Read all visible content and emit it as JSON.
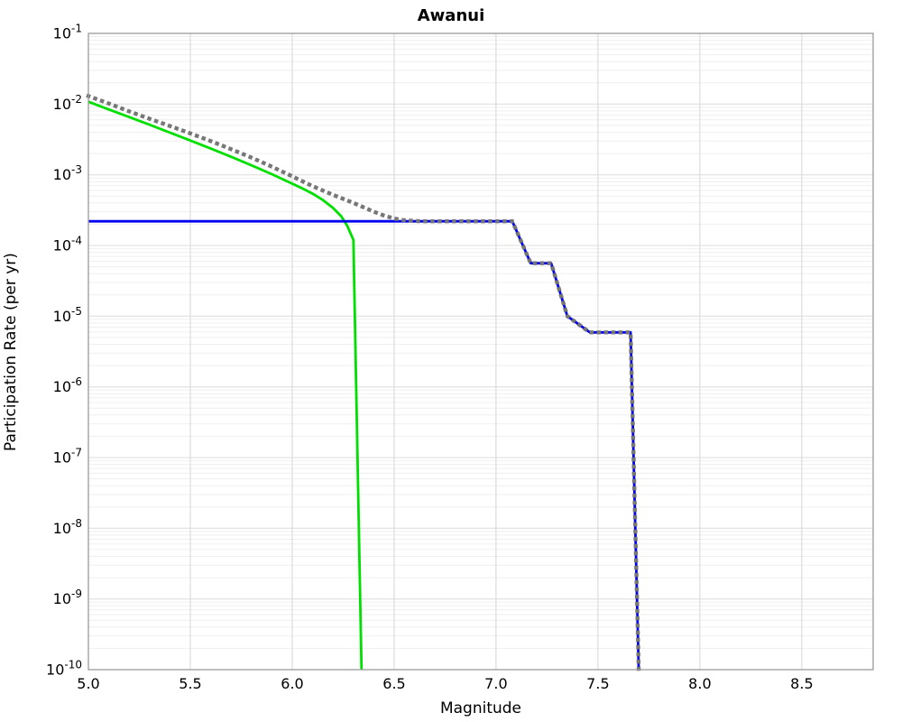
{
  "chart_data": {
    "type": "line",
    "title": "Awanui",
    "xlabel": "Magnitude",
    "ylabel": "Participation Rate (per yr)",
    "xlim": [
      5.0,
      8.85
    ],
    "ylim": [
      1e-10,
      0.1
    ],
    "y_scale": "log",
    "grid": true,
    "legend": "none",
    "x_ticks": [
      5.0,
      5.5,
      6.0,
      6.5,
      7.0,
      7.5,
      8.0,
      8.5
    ],
    "x_tick_labels": [
      "5.0",
      "5.5",
      "6.0",
      "6.5",
      "7.0",
      "7.5",
      "8.0",
      "8.5"
    ],
    "y_tick_exponents": [
      -1,
      -2,
      -3,
      -4,
      -5,
      -6,
      -7,
      -8,
      -9,
      -10
    ],
    "colors": {
      "frame": "#9a9a9a",
      "grid_vertical": "#d6d6d6",
      "grid_major": "#dcdcdc",
      "grid_minor": "#efefef",
      "gray_series": "#777777",
      "green_series": "#00e000",
      "blue_series": "#0000ee"
    },
    "series": [
      {
        "id": "green-solid",
        "color_key": "green_series",
        "style": "solid",
        "width": 2.8,
        "points": [
          [
            5.0,
            0.0108
          ],
          [
            5.1,
            0.0084
          ],
          [
            5.2,
            0.00655
          ],
          [
            5.3,
            0.0051
          ],
          [
            5.4,
            0.00395
          ],
          [
            5.5,
            0.00305
          ],
          [
            5.6,
            0.00235
          ],
          [
            5.7,
            0.0018
          ],
          [
            5.8,
            0.00136
          ],
          [
            5.9,
            0.00102
          ],
          [
            6.0,
            0.00075
          ],
          [
            6.05,
            0.00064
          ],
          [
            6.1,
            0.00054
          ],
          [
            6.15,
            0.00044
          ],
          [
            6.2,
            0.00034
          ],
          [
            6.24,
            0.00026
          ],
          [
            6.27,
            0.00019
          ],
          [
            6.29,
            0.00014
          ],
          [
            6.3,
            0.00012
          ],
          [
            6.34,
            1e-10
          ]
        ]
      },
      {
        "id": "blue-solid",
        "color_key": "blue_series",
        "style": "solid",
        "width": 2.8,
        "points": [
          [
            5.0,
            0.00022
          ],
          [
            7.08,
            0.00022
          ],
          [
            7.17,
            5.6e-05
          ],
          [
            7.27,
            5.6e-05
          ],
          [
            7.35,
            1e-05
          ],
          [
            7.46,
            5.9e-06
          ],
          [
            7.66,
            5.9e-06
          ],
          [
            7.7,
            1e-10
          ]
        ]
      },
      {
        "id": "gray-dotted",
        "color_key": "gray_series",
        "style": "dotted",
        "width": 4.4,
        "points": [
          [
            5.0,
            0.013
          ],
          [
            5.1,
            0.0102
          ],
          [
            5.2,
            0.0079
          ],
          [
            5.3,
            0.0062
          ],
          [
            5.4,
            0.0049
          ],
          [
            5.5,
            0.00385
          ],
          [
            5.6,
            0.003
          ],
          [
            5.7,
            0.0023
          ],
          [
            5.8,
            0.00175
          ],
          [
            5.9,
            0.0013
          ],
          [
            6.0,
            0.00095
          ],
          [
            6.1,
            0.00069
          ],
          [
            6.2,
            0.00052
          ],
          [
            6.3,
            0.0004
          ],
          [
            6.4,
            0.0003
          ],
          [
            6.45,
            0.000265
          ],
          [
            6.5,
            0.00024
          ],
          [
            6.55,
            0.000228
          ],
          [
            6.6,
            0.000222
          ],
          [
            6.65,
            0.00022
          ],
          [
            7.08,
            0.00022
          ],
          [
            7.17,
            5.6e-05
          ],
          [
            7.27,
            5.6e-05
          ],
          [
            7.35,
            1e-05
          ],
          [
            7.46,
            5.9e-06
          ],
          [
            7.66,
            5.9e-06
          ],
          [
            7.7,
            1e-10
          ]
        ]
      }
    ]
  }
}
